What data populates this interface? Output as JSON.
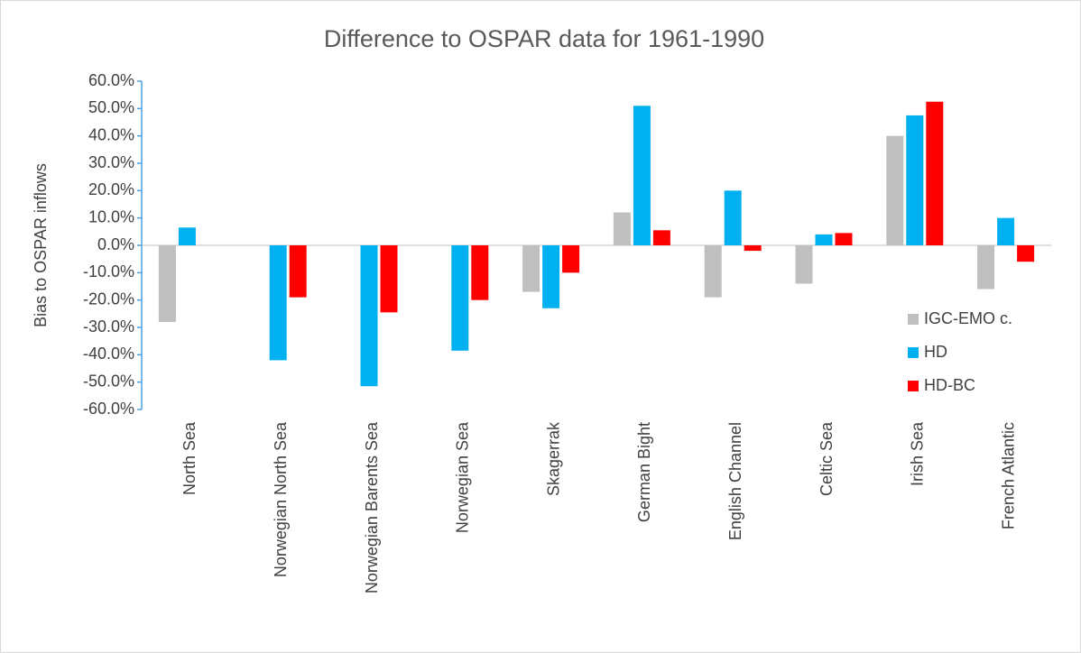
{
  "chart_data": {
    "type": "bar",
    "title": "Difference to OSPAR data for 1961-1990",
    "y_label": "Bias to OSPAR inflows",
    "categories": [
      "North Sea",
      "Norwegian North Sea",
      "Norwegian Barents Sea",
      "Norwegian Sea",
      "Skagerrak",
      "German Bight",
      "English Channel",
      "Celtic Sea",
      "Irish Sea",
      "French Atlantic"
    ],
    "series": [
      {
        "name": "IGC-EMO c.",
        "color": "#bfbfbf",
        "values": [
          -28,
          null,
          null,
          null,
          -17,
          12,
          -19,
          -14,
          40,
          -16
        ]
      },
      {
        "name": "HD",
        "color": "#00b0f0",
        "values": [
          6.5,
          -42,
          -51.5,
          -38.5,
          -23,
          51,
          20,
          4,
          47.5,
          10
        ]
      },
      {
        "name": "HD-BC",
        "color": "#ff0000",
        "values": [
          null,
          -19,
          -24.5,
          -20,
          -10,
          5.5,
          -2,
          4.5,
          52.5,
          -6
        ]
      }
    ],
    "ylim": [
      -60,
      60
    ],
    "yticks": [
      {
        "value": -60,
        "label": "-60.0%"
      },
      {
        "value": -50,
        "label": "-50.0%"
      },
      {
        "value": -40,
        "label": "-40.0%"
      },
      {
        "value": -30,
        "label": "-30.0%"
      },
      {
        "value": -20,
        "label": "-20.0%"
      },
      {
        "value": -10,
        "label": "-10.0%"
      },
      {
        "value": 0,
        "label": "0.0%"
      },
      {
        "value": 10,
        "label": "10.0%"
      },
      {
        "value": 20,
        "label": "20.0%"
      },
      {
        "value": 30,
        "label": "30.0%"
      },
      {
        "value": 40,
        "label": "40.0%"
      },
      {
        "value": 50,
        "label": "50.0%"
      },
      {
        "value": 60,
        "label": "60.0%"
      }
    ],
    "grid": false,
    "legend": "right"
  }
}
